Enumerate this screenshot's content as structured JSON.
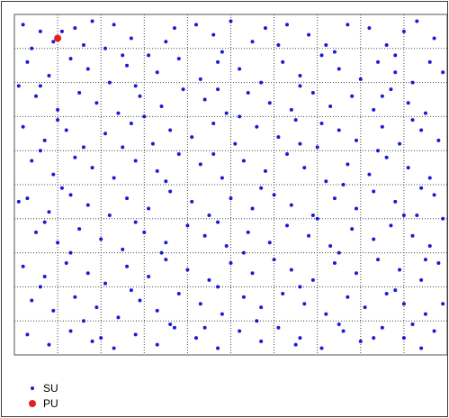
{
  "chart_data": {
    "type": "scatter",
    "title": "",
    "xlabel": "",
    "ylabel": "",
    "grid": true,
    "grid_style": "dotted",
    "xlim": [
      0,
      100
    ],
    "ylim": [
      0,
      100
    ],
    "gridlines_x": [
      10,
      20,
      30,
      40,
      50,
      60,
      70,
      80,
      90
    ],
    "gridlines_y": [
      10,
      20,
      30,
      40,
      50,
      60,
      70,
      80,
      90
    ],
    "legend_placement": "bottom-left",
    "series": [
      {
        "name": "SU",
        "color": "#1a1ad6",
        "marker": "dot",
        "points": [
          [
            2,
            97
          ],
          [
            6,
            95
          ],
          [
            9,
            92
          ],
          [
            4,
            90
          ],
          [
            14,
            96
          ],
          [
            18,
            98
          ],
          [
            23,
            97
          ],
          [
            27,
            93
          ],
          [
            21,
            90
          ],
          [
            31,
            88
          ],
          [
            37,
            96
          ],
          [
            42,
            97
          ],
          [
            46,
            94
          ],
          [
            50,
            98
          ],
          [
            55,
            92
          ],
          [
            58,
            96
          ],
          [
            63,
            97
          ],
          [
            68,
            94
          ],
          [
            72,
            91
          ],
          [
            77,
            97
          ],
          [
            82,
            96
          ],
          [
            86,
            91
          ],
          [
            90,
            95
          ],
          [
            93,
            98
          ],
          [
            97,
            93
          ],
          [
            3,
            86
          ],
          [
            8,
            82
          ],
          [
            13,
            87
          ],
          [
            17,
            84
          ],
          [
            22,
            80
          ],
          [
            26,
            85
          ],
          [
            33,
            83
          ],
          [
            38,
            87
          ],
          [
            43,
            81
          ],
          [
            47,
            86
          ],
          [
            52,
            84
          ],
          [
            57,
            80
          ],
          [
            62,
            86
          ],
          [
            66,
            82
          ],
          [
            71,
            88
          ],
          [
            75,
            84
          ],
          [
            80,
            81
          ],
          [
            84,
            86
          ],
          [
            88,
            83
          ],
          [
            92,
            80
          ],
          [
            96,
            86
          ],
          [
            5,
            76
          ],
          [
            10,
            72
          ],
          [
            15,
            77
          ],
          [
            19,
            74
          ],
          [
            24,
            71
          ],
          [
            29,
            76
          ],
          [
            34,
            73
          ],
          [
            39,
            78
          ],
          [
            44,
            75
          ],
          [
            49,
            71
          ],
          [
            54,
            77
          ],
          [
            59,
            74
          ],
          [
            64,
            72
          ],
          [
            69,
            77
          ],
          [
            73,
            73
          ],
          [
            78,
            76
          ],
          [
            83,
            72
          ],
          [
            87,
            78
          ],
          [
            91,
            74
          ],
          [
            95,
            71
          ],
          [
            2,
            67
          ],
          [
            7,
            63
          ],
          [
            12,
            66
          ],
          [
            16,
            61
          ],
          [
            21,
            65
          ],
          [
            27,
            68
          ],
          [
            32,
            62
          ],
          [
            36,
            66
          ],
          [
            41,
            64
          ],
          [
            46,
            68
          ],
          [
            51,
            62
          ],
          [
            56,
            67
          ],
          [
            61,
            64
          ],
          [
            65,
            69
          ],
          [
            70,
            61
          ],
          [
            75,
            66
          ],
          [
            79,
            63
          ],
          [
            85,
            67
          ],
          [
            89,
            62
          ],
          [
            94,
            66
          ],
          [
            98,
            63
          ],
          [
            4,
            57
          ],
          [
            9,
            53
          ],
          [
            14,
            58
          ],
          [
            18,
            55
          ],
          [
            23,
            52
          ],
          [
            28,
            57
          ],
          [
            33,
            54
          ],
          [
            38,
            59
          ],
          [
            43,
            56
          ],
          [
            48,
            52
          ],
          [
            53,
            57
          ],
          [
            58,
            54
          ],
          [
            63,
            59
          ],
          [
            67,
            55
          ],
          [
            72,
            51
          ],
          [
            77,
            56
          ],
          [
            82,
            53
          ],
          [
            86,
            58
          ],
          [
            91,
            55
          ],
          [
            96,
            52
          ],
          [
            3,
            46
          ],
          [
            8,
            42
          ],
          [
            13,
            47
          ],
          [
            17,
            44
          ],
          [
            22,
            41
          ],
          [
            26,
            46
          ],
          [
            31,
            43
          ],
          [
            36,
            48
          ],
          [
            41,
            45
          ],
          [
            45,
            41
          ],
          [
            50,
            46
          ],
          [
            55,
            43
          ],
          [
            60,
            47
          ],
          [
            64,
            44
          ],
          [
            69,
            41
          ],
          [
            74,
            46
          ],
          [
            79,
            43
          ],
          [
            83,
            48
          ],
          [
            88,
            45
          ],
          [
            93,
            41
          ],
          [
            97,
            47
          ],
          [
            5,
            36
          ],
          [
            10,
            33
          ],
          [
            15,
            37
          ],
          [
            20,
            34
          ],
          [
            25,
            31
          ],
          [
            30,
            36
          ],
          [
            35,
            33
          ],
          [
            40,
            38
          ],
          [
            44,
            35
          ],
          [
            49,
            32
          ],
          [
            54,
            36
          ],
          [
            59,
            33
          ],
          [
            63,
            38
          ],
          [
            68,
            35
          ],
          [
            73,
            32
          ],
          [
            78,
            37
          ],
          [
            83,
            34
          ],
          [
            87,
            38
          ],
          [
            92,
            35
          ],
          [
            96,
            32
          ],
          [
            2,
            26
          ],
          [
            7,
            23
          ],
          [
            12,
            27
          ],
          [
            17,
            24
          ],
          [
            21,
            21
          ],
          [
            26,
            26
          ],
          [
            31,
            23
          ],
          [
            35,
            28
          ],
          [
            40,
            25
          ],
          [
            45,
            22
          ],
          [
            50,
            27
          ],
          [
            55,
            24
          ],
          [
            60,
            28
          ],
          [
            64,
            25
          ],
          [
            69,
            22
          ],
          [
            74,
            27
          ],
          [
            79,
            24
          ],
          [
            84,
            28
          ],
          [
            89,
            25
          ],
          [
            94,
            22
          ],
          [
            98,
            27
          ],
          [
            4,
            16
          ],
          [
            9,
            13
          ],
          [
            14,
            17
          ],
          [
            19,
            14
          ],
          [
            24,
            11
          ],
          [
            29,
            16
          ],
          [
            33,
            13
          ],
          [
            38,
            18
          ],
          [
            43,
            15
          ],
          [
            48,
            12
          ],
          [
            53,
            17
          ],
          [
            57,
            14
          ],
          [
            62,
            18
          ],
          [
            67,
            15
          ],
          [
            72,
            12
          ],
          [
            77,
            17
          ],
          [
            81,
            14
          ],
          [
            86,
            18
          ],
          [
            90,
            15
          ],
          [
            95,
            12
          ],
          [
            3,
            6
          ],
          [
            8,
            3
          ],
          [
            13,
            7
          ],
          [
            18,
            4
          ],
          [
            23,
            2
          ],
          [
            28,
            6
          ],
          [
            33,
            3
          ],
          [
            37,
            8
          ],
          [
            42,
            5
          ],
          [
            47,
            2
          ],
          [
            52,
            7
          ],
          [
            57,
            4
          ],
          [
            61,
            8
          ],
          [
            66,
            5
          ],
          [
            71,
            2
          ],
          [
            76,
            7
          ],
          [
            80,
            4
          ],
          [
            85,
            8
          ],
          [
            90,
            5
          ],
          [
            94,
            2
          ],
          [
            97,
            7
          ],
          [
            11,
            95
          ],
          [
            16,
            91
          ],
          [
            25,
            88
          ],
          [
            35,
            92
          ],
          [
            48,
            89
          ],
          [
            61,
            91
          ],
          [
            74,
            89
          ],
          [
            88,
            88
          ],
          [
            6,
            79
          ],
          [
            28,
            79
          ],
          [
            47,
            78
          ],
          [
            66,
            79
          ],
          [
            85,
            76
          ],
          [
            10,
            69
          ],
          [
            30,
            70
          ],
          [
            52,
            70
          ],
          [
            71,
            68
          ],
          [
            92,
            69
          ],
          [
            6,
            60
          ],
          [
            25,
            61
          ],
          [
            46,
            59
          ],
          [
            66,
            62
          ],
          [
            84,
            60
          ],
          [
            11,
            49
          ],
          [
            35,
            51
          ],
          [
            57,
            49
          ],
          [
            76,
            50
          ],
          [
            94,
            49
          ],
          [
            7,
            39
          ],
          [
            28,
            39
          ],
          [
            47,
            39
          ],
          [
            70,
            40
          ],
          [
            90,
            41
          ],
          [
            13,
            30
          ],
          [
            34,
            30
          ],
          [
            53,
            30
          ],
          [
            75,
            30
          ],
          [
            95,
            28
          ],
          [
            6,
            20
          ],
          [
            27,
            19
          ],
          [
            47,
            20
          ],
          [
            66,
            20
          ],
          [
            88,
            19
          ],
          [
            16,
            10
          ],
          [
            36,
            9
          ],
          [
            56,
            10
          ],
          [
            75,
            9
          ],
          [
            92,
            9
          ],
          [
            20,
            5
          ],
          [
            44,
            8
          ],
          [
            65,
            3
          ],
          [
            83,
            5
          ],
          [
            1,
            79
          ],
          [
            99,
            83
          ],
          [
            1,
            45
          ],
          [
            99,
            40
          ],
          [
            99,
            15
          ]
        ]
      },
      {
        "name": "PU",
        "color": "#e32020",
        "marker": "dot",
        "points": [
          [
            10,
            93
          ]
        ]
      }
    ]
  }
}
